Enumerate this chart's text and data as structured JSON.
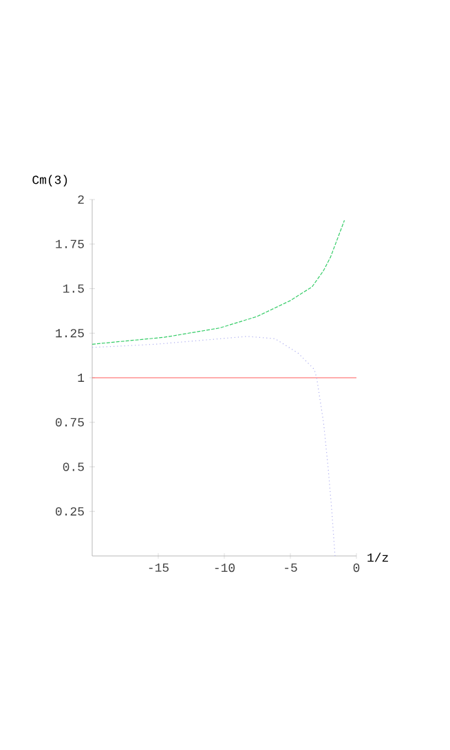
{
  "chart_data": {
    "type": "line",
    "xlabel": "1/z",
    "ylabel": "Cm(3)",
    "xlim": [
      -20,
      0
    ],
    "ylim": [
      0,
      2
    ],
    "xticks": [
      -15,
      -10,
      -5,
      0
    ],
    "yticks": [
      0.25,
      0.5,
      0.75,
      1,
      1.25,
      1.5,
      1.75,
      2
    ],
    "marker": "none",
    "series": [
      {
        "color": "#ff5a5a",
        "line_style": "solid",
        "x": [
          -20,
          0
        ],
        "values": [
          1,
          1
        ]
      },
      {
        "color": "#33cc66",
        "line_style": "dashed",
        "x": [
          -20,
          -14.55,
          -10.36,
          -7.55,
          -5,
          -3.36,
          -2.5,
          -1.96,
          -0.91
        ],
        "values": [
          1.188,
          1.227,
          1.279,
          1.343,
          1.433,
          1.51,
          1.6,
          1.677,
          1.883
        ]
      },
      {
        "color": "#aaaaee",
        "line_style": "dotted",
        "x": [
          -20,
          -15.2,
          -8.26,
          -6.16,
          -4.4,
          -3.19,
          -3.01,
          -2.49,
          -2.14,
          -1.86,
          -1.62
        ],
        "values": [
          1.17,
          1.188,
          1.232,
          1.219,
          1.137,
          1.047,
          1.0,
          0.75,
          0.494,
          0.25,
          0.0
        ]
      }
    ]
  }
}
